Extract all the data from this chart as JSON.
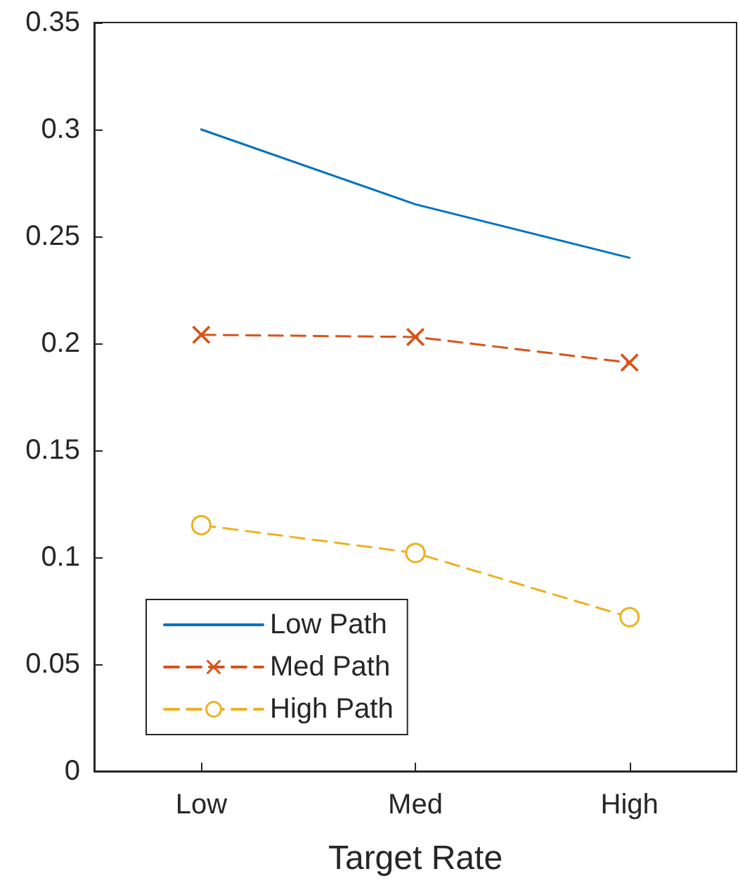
{
  "chart_data": {
    "type": "line",
    "xlabel": "Target Rate",
    "categories": [
      "Low",
      "Med",
      "High"
    ],
    "series": [
      {
        "name": "Low Path",
        "color": "#0072bd",
        "values": [
          0.3,
          0.265,
          0.24
        ],
        "marker": "none",
        "line_style": "solid"
      },
      {
        "name": "Med Path",
        "color": "#d95319",
        "values": [
          0.204,
          0.203,
          0.191
        ],
        "marker": "cross",
        "line_style": "dashed"
      },
      {
        "name": "High Path",
        "color": "#edb120",
        "values": [
          0.115,
          0.102,
          0.072
        ],
        "marker": "circle",
        "line_style": "dashed"
      }
    ],
    "ylim": [
      0,
      0.35
    ],
    "yticks": [
      0,
      0.05,
      0.1,
      0.15,
      0.2,
      0.25,
      0.3,
      0.35
    ],
    "grid": false,
    "legend": "bottom left"
  }
}
